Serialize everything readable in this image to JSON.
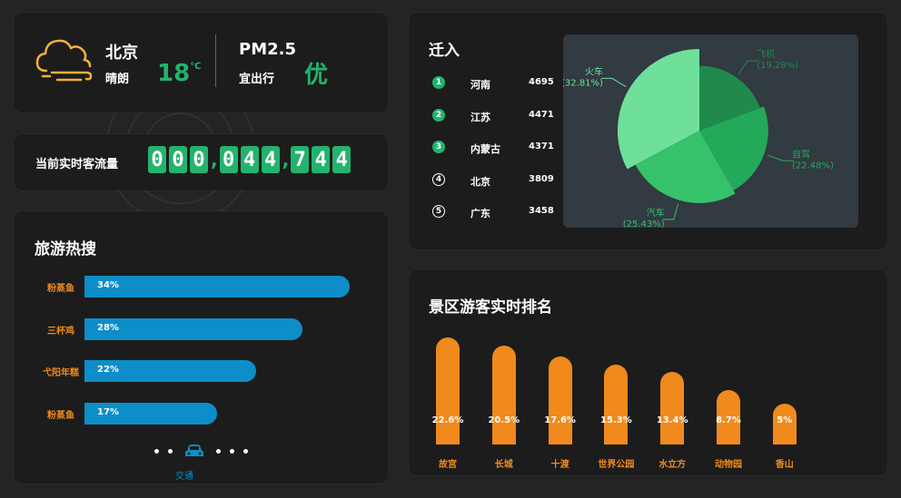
{
  "weather": {
    "city": "北京",
    "condition": "晴朗",
    "temperature": "18",
    "unit": "℃",
    "pm_label": "PM2.5",
    "outing": "宜出行",
    "air_quality": "优",
    "icon": "cloud-wind-icon",
    "accent": "#23b36d"
  },
  "flow": {
    "label": "当前实时客流量",
    "digits": [
      "0",
      "0",
      "0",
      ",",
      "0",
      "4",
      "4",
      ",",
      "7",
      "4",
      "4"
    ]
  },
  "hot_search": {
    "title": "旅游热搜",
    "items": [
      {
        "name": "粉蒸鱼",
        "percent": "34%",
        "value": 34
      },
      {
        "name": "三杯鸡",
        "percent": "28%",
        "value": 28
      },
      {
        "name": "弋阳年糕",
        "percent": "22%",
        "value": 22
      },
      {
        "name": "粉蒸鱼",
        "percent": "17%",
        "value": 17
      }
    ],
    "pager_label": "交通",
    "pager_icon": "car-icon",
    "bar_color": "#0d8ec8"
  },
  "migration": {
    "title": "迁入",
    "items": [
      {
        "rank": "1",
        "name": "河南",
        "value": "4695"
      },
      {
        "rank": "2",
        "name": "江苏",
        "value": "4471"
      },
      {
        "rank": "3",
        "name": "内蒙古",
        "value": "4371"
      },
      {
        "rank": "4",
        "name": "北京",
        "value": "3809"
      },
      {
        "rank": "5",
        "name": "广东",
        "value": "3458"
      }
    ]
  },
  "chart_data": [
    {
      "type": "pie",
      "title": "",
      "slices": [
        {
          "name": "火车",
          "value": 32.81,
          "label": "(32.81%)",
          "color": "#6ee09a"
        },
        {
          "name": "飞机",
          "value": 19.28,
          "label": "(19.28%)",
          "color": "#1f8a4c"
        },
        {
          "name": "自驾",
          "value": 22.48,
          "label": "(22.48%)",
          "color": "#24a95a"
        },
        {
          "name": "汽车",
          "value": 25.43,
          "label": "(25.43%)",
          "color": "#35c26b"
        }
      ],
      "rose": true
    },
    {
      "type": "bar",
      "title": "景区游客实时排名",
      "categories": [
        "故宫",
        "长城",
        "十渡",
        "世界公园",
        "水立方",
        "动物园",
        "香山"
      ],
      "values": [
        22.6,
        20.5,
        17.6,
        15.3,
        13.4,
        8.7,
        5
      ],
      "labels": [
        "22.6%",
        "20.5%",
        "17.6%",
        "15.3%",
        "13.4%",
        "8.7%",
        "5%"
      ],
      "color": "#f08a1c"
    }
  ]
}
